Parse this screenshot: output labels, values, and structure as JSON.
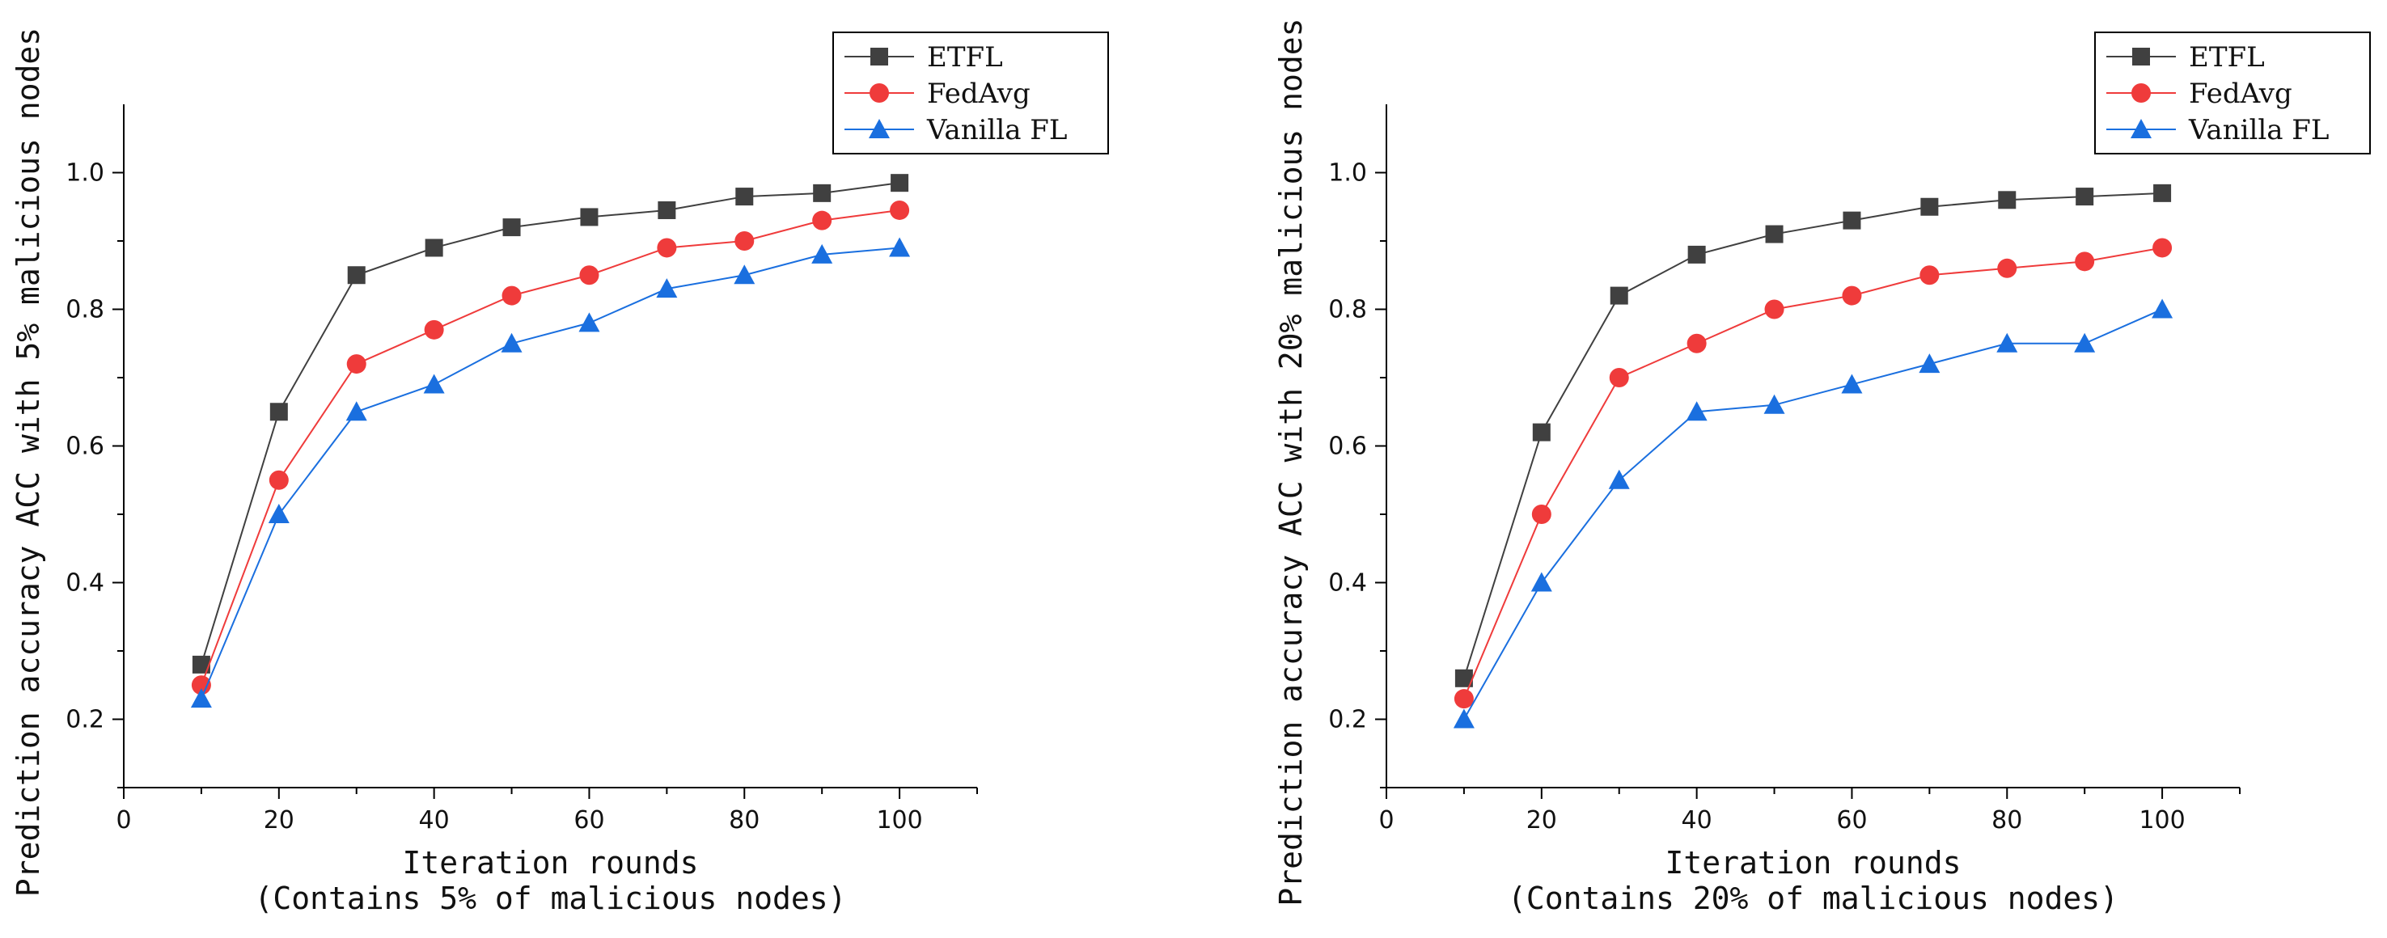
{
  "chart_data": [
    {
      "type": "line",
      "xlabel": "Iteration rounds",
      "xlabel_sub": "(Contains 5% of malicious nodes)",
      "ylabel": "Prediction accuracy ACC with 5% malicious nodes",
      "xlim": [
        0,
        110
      ],
      "ylim": [
        0.1,
        1.1
      ],
      "xticks": [
        0,
        20,
        40,
        60,
        80,
        100
      ],
      "yticks": [
        0.2,
        0.4,
        0.6,
        0.8,
        1.0
      ],
      "xtick_labels": [
        "0",
        "20",
        "40",
        "60",
        "80",
        "100"
      ],
      "ytick_labels": [
        "0.2",
        "0.4",
        "0.6",
        "0.8",
        "1.0"
      ],
      "x": [
        10,
        20,
        30,
        40,
        50,
        60,
        70,
        80,
        90,
        100
      ],
      "legend_position": "top-right",
      "series": [
        {
          "name": "ETFL",
          "color": "#404040",
          "marker": "square",
          "values": [
            0.28,
            0.65,
            0.85,
            0.89,
            0.92,
            0.935,
            0.945,
            0.965,
            0.97,
            0.985
          ]
        },
        {
          "name": "FedAvg",
          "color": "#ef3b3b",
          "marker": "circle",
          "values": [
            0.25,
            0.55,
            0.72,
            0.77,
            0.82,
            0.85,
            0.89,
            0.9,
            0.93,
            0.945
          ]
        },
        {
          "name": "Vanilla FL",
          "color": "#1a6fdf",
          "marker": "triangle",
          "values": [
            0.23,
            0.5,
            0.65,
            0.69,
            0.75,
            0.78,
            0.83,
            0.85,
            0.88,
            0.89
          ]
        }
      ]
    },
    {
      "type": "line",
      "xlabel": "Iteration rounds",
      "xlabel_sub": "(Contains 20% of malicious nodes)",
      "ylabel": "Prediction accuracy ACC with 20% malicious nodes",
      "xlim": [
        0,
        110
      ],
      "ylim": [
        0.1,
        1.1
      ],
      "xticks": [
        0,
        20,
        40,
        60,
        80,
        100
      ],
      "yticks": [
        0.2,
        0.4,
        0.6,
        0.8,
        1.0
      ],
      "xtick_labels": [
        "0",
        "20",
        "40",
        "60",
        "80",
        "100"
      ],
      "ytick_labels": [
        "0.2",
        "0.4",
        "0.6",
        "0.8",
        "1.0"
      ],
      "x": [
        10,
        20,
        30,
        40,
        50,
        60,
        70,
        80,
        90,
        100
      ],
      "legend_position": "top-right",
      "series": [
        {
          "name": "ETFL",
          "color": "#404040",
          "marker": "square",
          "values": [
            0.26,
            0.62,
            0.82,
            0.88,
            0.91,
            0.93,
            0.95,
            0.96,
            0.965,
            0.97
          ]
        },
        {
          "name": "FedAvg",
          "color": "#ef3b3b",
          "marker": "circle",
          "values": [
            0.23,
            0.5,
            0.7,
            0.75,
            0.8,
            0.82,
            0.85,
            0.86,
            0.87,
            0.89
          ]
        },
        {
          "name": "Vanilla FL",
          "color": "#1a6fdf",
          "marker": "triangle",
          "values": [
            0.2,
            0.4,
            0.55,
            0.65,
            0.66,
            0.69,
            0.72,
            0.75,
            0.75,
            0.8
          ]
        }
      ]
    }
  ]
}
